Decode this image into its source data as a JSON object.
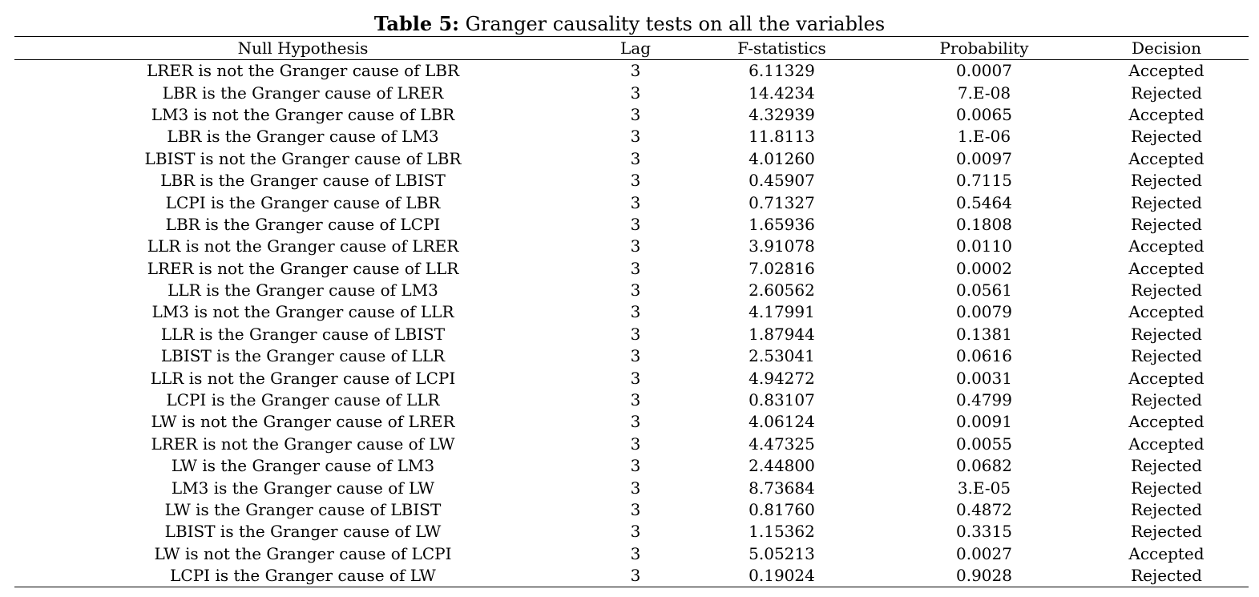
{
  "caption": {
    "label": "Table 5:",
    "text": "Granger causality tests on all the variables"
  },
  "table": {
    "headers": {
      "hypothesis": "Null Hypothesis",
      "lag": "Lag",
      "fstat": "F-statistics",
      "prob": "Probability",
      "decision": "Decision"
    },
    "rows": [
      {
        "hypothesis": "LRER is not the Granger cause of LBR",
        "lag": "3",
        "fstat": "6.11329",
        "prob": "0.0007",
        "decision": "Accepted"
      },
      {
        "hypothesis": "LBR is the Granger cause of LRER",
        "lag": "3",
        "fstat": "14.4234",
        "prob": "7.E-08",
        "decision": "Rejected"
      },
      {
        "hypothesis": "LM3 is not the Granger cause of LBR",
        "lag": "3",
        "fstat": "4.32939",
        "prob": "0.0065",
        "decision": "Accepted"
      },
      {
        "hypothesis": "LBR is the Granger cause of LM3",
        "lag": "3",
        "fstat": "11.8113",
        "prob": "1.E-06",
        "decision": "Rejected"
      },
      {
        "hypothesis": "LBIST is not the Granger cause of LBR",
        "lag": "3",
        "fstat": "4.01260",
        "prob": "0.0097",
        "decision": "Accepted"
      },
      {
        "hypothesis": "LBR is the Granger cause of LBIST",
        "lag": "3",
        "fstat": "0.45907",
        "prob": "0.7115",
        "decision": "Rejected"
      },
      {
        "hypothesis": "LCPI is the Granger cause of LBR",
        "lag": "3",
        "fstat": "0.71327",
        "prob": "0.5464",
        "decision": "Rejected"
      },
      {
        "hypothesis": "LBR is the Granger cause of LCPI",
        "lag": "3",
        "fstat": "1.65936",
        "prob": "0.1808",
        "decision": "Rejected"
      },
      {
        "hypothesis": "LLR is not the Granger cause of LRER",
        "lag": "3",
        "fstat": "3.91078",
        "prob": "0.0110",
        "decision": "Accepted"
      },
      {
        "hypothesis": "LRER is not the Granger cause of LLR",
        "lag": "3",
        "fstat": "7.02816",
        "prob": "0.0002",
        "decision": "Accepted"
      },
      {
        "hypothesis": "LLR is the Granger cause of LM3",
        "lag": "3",
        "fstat": "2.60562",
        "prob": "0.0561",
        "decision": "Rejected"
      },
      {
        "hypothesis": "LM3 is not the Granger cause of LLR",
        "lag": "3",
        "fstat": "4.17991",
        "prob": "0.0079",
        "decision": "Accepted"
      },
      {
        "hypothesis": "LLR is the Granger cause of LBIST",
        "lag": "3",
        "fstat": "1.87944",
        "prob": "0.1381",
        "decision": "Rejected"
      },
      {
        "hypothesis": "LBIST is the Granger cause of LLR",
        "lag": "3",
        "fstat": "2.53041",
        "prob": "0.0616",
        "decision": "Rejected"
      },
      {
        "hypothesis": "LLR is not the Granger cause of LCPI",
        "lag": "3",
        "fstat": "4.94272",
        "prob": "0.0031",
        "decision": "Accepted"
      },
      {
        "hypothesis": "LCPI is the Granger cause of LLR",
        "lag": "3",
        "fstat": "0.83107",
        "prob": "0.4799",
        "decision": "Rejected"
      },
      {
        "hypothesis": "LW is not the Granger cause of LRER",
        "lag": "3",
        "fstat": "4.06124",
        "prob": "0.0091",
        "decision": "Accepted"
      },
      {
        "hypothesis": "LRER is not the Granger cause of LW",
        "lag": "3",
        "fstat": "4.47325",
        "prob": "0.0055",
        "decision": "Accepted"
      },
      {
        "hypothesis": "LW is the Granger cause of LM3",
        "lag": "3",
        "fstat": "2.44800",
        "prob": "0.0682",
        "decision": "Rejected"
      },
      {
        "hypothesis": "LM3 is the Granger cause of LW",
        "lag": "3",
        "fstat": "8.73684",
        "prob": "3.E-05",
        "decision": "Rejected"
      },
      {
        "hypothesis": "LW is the Granger cause of LBIST",
        "lag": "3",
        "fstat": "0.81760",
        "prob": "0.4872",
        "decision": "Rejected"
      },
      {
        "hypothesis": "LBIST is the Granger cause of LW",
        "lag": "3",
        "fstat": "1.15362",
        "prob": "0.3315",
        "decision": "Rejected"
      },
      {
        "hypothesis": "LW is not the Granger cause of LCPI",
        "lag": "3",
        "fstat": "5.05213",
        "prob": "0.0027",
        "decision": "Accepted"
      },
      {
        "hypothesis": "LCPI is the Granger cause of LW",
        "lag": "3",
        "fstat": "0.19024",
        "prob": "0.9028",
        "decision": "Rejected"
      }
    ]
  }
}
